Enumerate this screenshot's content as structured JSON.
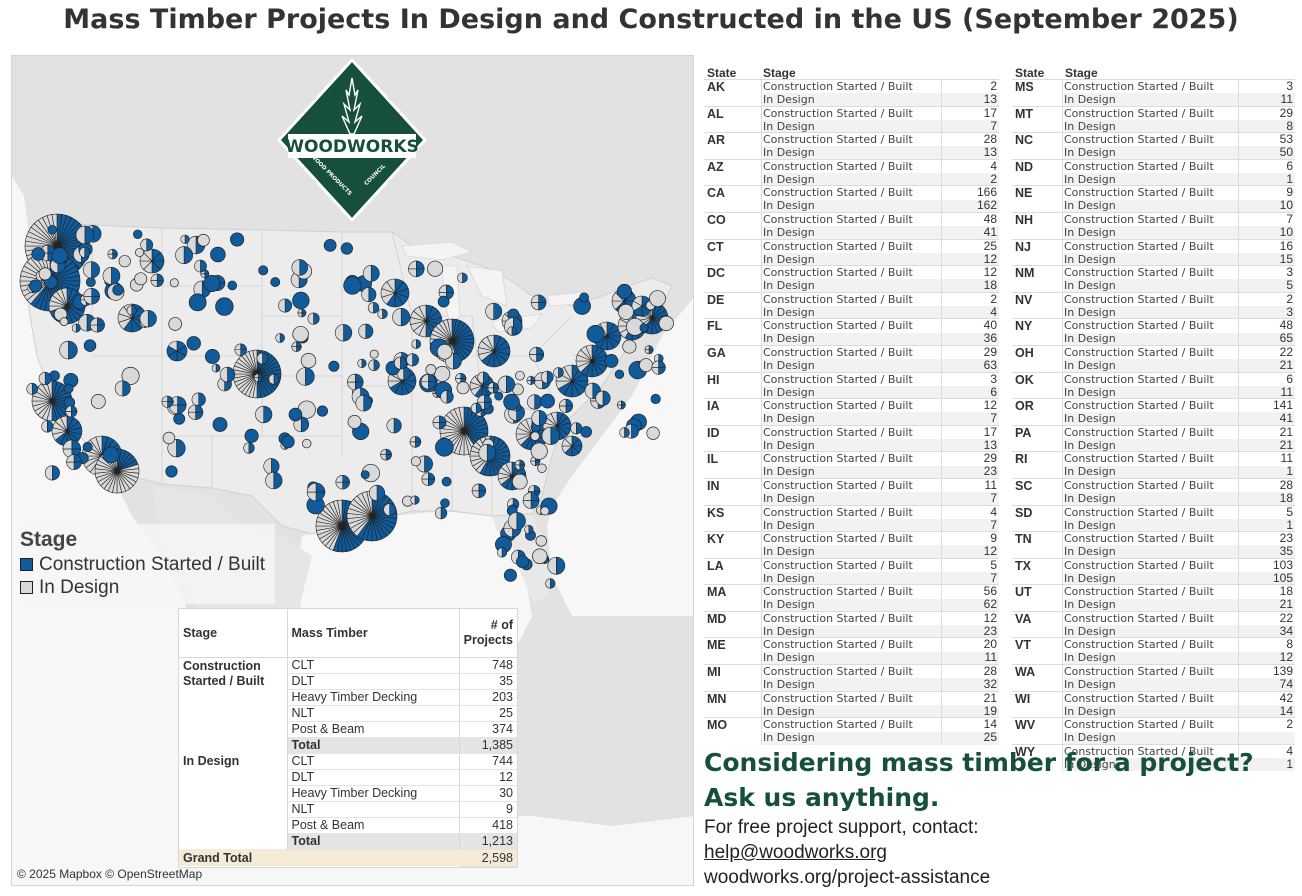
{
  "title": "Mass Timber Projects In Design and Constructed in the US (September 2025)",
  "colors": {
    "built": "#0f5b9c",
    "design": "#d9d9d9",
    "brand_green": "#17503a"
  },
  "map": {
    "attribution": "© 2025 Mapbox © OpenStreetMap",
    "logo": {
      "brand": "WOODWORKS",
      "left_text": "WOOD PRODUCTS",
      "right_text": "COUNCIL"
    },
    "legend": {
      "title": "Stage",
      "items": [
        {
          "label": "Construction Started / Built",
          "color": "#0f5b9c"
        },
        {
          "label": "In Design",
          "color": "#d9d9d9"
        }
      ]
    }
  },
  "summary": {
    "headers": {
      "stage": "Stage",
      "mass_timber": "Mass Timber",
      "projects_line1": "# of",
      "projects_line2": "Projects"
    },
    "groups": [
      {
        "stage_line1": "Construction",
        "stage_line2": "Started / Built",
        "rows": [
          {
            "type": "CLT",
            "count": "748"
          },
          {
            "type": "DLT",
            "count": "35"
          },
          {
            "type": "Heavy Timber Decking",
            "count": "203"
          },
          {
            "type": "NLT",
            "count": "25"
          },
          {
            "type": "Post & Beam",
            "count": "374"
          }
        ],
        "total_label": "Total",
        "total": "1,385"
      },
      {
        "stage_line1": "In Design",
        "stage_line2": "",
        "rows": [
          {
            "type": "CLT",
            "count": "744"
          },
          {
            "type": "DLT",
            "count": "12"
          },
          {
            "type": "Heavy Timber Decking",
            "count": "30"
          },
          {
            "type": "NLT",
            "count": "9"
          },
          {
            "type": "Post & Beam",
            "count": "418"
          }
        ],
        "total_label": "Total",
        "total": "1,213"
      }
    ],
    "grand_total_label": "Grand Total",
    "grand_total": "2,598"
  },
  "state_table": {
    "headers": {
      "state": "State",
      "stage": "Stage"
    },
    "built_label": "Construction Started / Built",
    "design_label": "In Design",
    "left": [
      {
        "state": "AK",
        "built": "2",
        "design": "13"
      },
      {
        "state": "AL",
        "built": "17",
        "design": "7"
      },
      {
        "state": "AR",
        "built": "28",
        "design": "13"
      },
      {
        "state": "AZ",
        "built": "4",
        "design": "2"
      },
      {
        "state": "CA",
        "built": "166",
        "design": "162"
      },
      {
        "state": "CO",
        "built": "48",
        "design": "41"
      },
      {
        "state": "CT",
        "built": "25",
        "design": "12"
      },
      {
        "state": "DC",
        "built": "12",
        "design": "18"
      },
      {
        "state": "DE",
        "built": "2",
        "design": "4"
      },
      {
        "state": "FL",
        "built": "40",
        "design": "36"
      },
      {
        "state": "GA",
        "built": "29",
        "design": "63"
      },
      {
        "state": "HI",
        "built": "3",
        "design": "6"
      },
      {
        "state": "IA",
        "built": "12",
        "design": "7"
      },
      {
        "state": "ID",
        "built": "17",
        "design": "13"
      },
      {
        "state": "IL",
        "built": "29",
        "design": "23"
      },
      {
        "state": "IN",
        "built": "11",
        "design": "7"
      },
      {
        "state": "KS",
        "built": "4",
        "design": "7"
      },
      {
        "state": "KY",
        "built": "9",
        "design": "12"
      },
      {
        "state": "LA",
        "built": "5",
        "design": "7"
      },
      {
        "state": "MA",
        "built": "56",
        "design": "62"
      },
      {
        "state": "MD",
        "built": "12",
        "design": "23"
      },
      {
        "state": "ME",
        "built": "20",
        "design": "11"
      },
      {
        "state": "MI",
        "built": "28",
        "design": "32"
      },
      {
        "state": "MN",
        "built": "21",
        "design": "19"
      },
      {
        "state": "MO",
        "built": "14",
        "design": "25"
      }
    ],
    "right": [
      {
        "state": "MS",
        "built": "3",
        "design": "11"
      },
      {
        "state": "MT",
        "built": "29",
        "design": "8"
      },
      {
        "state": "NC",
        "built": "53",
        "design": "50"
      },
      {
        "state": "ND",
        "built": "6",
        "design": "1"
      },
      {
        "state": "NE",
        "built": "9",
        "design": "10"
      },
      {
        "state": "NH",
        "built": "7",
        "design": "10"
      },
      {
        "state": "NJ",
        "built": "16",
        "design": "15"
      },
      {
        "state": "NM",
        "built": "3",
        "design": "5"
      },
      {
        "state": "NV",
        "built": "2",
        "design": "3"
      },
      {
        "state": "NY",
        "built": "48",
        "design": "65"
      },
      {
        "state": "OH",
        "built": "22",
        "design": "21"
      },
      {
        "state": "OK",
        "built": "6",
        "design": "11"
      },
      {
        "state": "OR",
        "built": "141",
        "design": "41"
      },
      {
        "state": "PA",
        "built": "21",
        "design": "21"
      },
      {
        "state": "RI",
        "built": "11",
        "design": "1"
      },
      {
        "state": "SC",
        "built": "28",
        "design": "18"
      },
      {
        "state": "SD",
        "built": "5",
        "design": "1"
      },
      {
        "state": "TN",
        "built": "23",
        "design": "35"
      },
      {
        "state": "TX",
        "built": "103",
        "design": "105"
      },
      {
        "state": "UT",
        "built": "18",
        "design": "21"
      },
      {
        "state": "VA",
        "built": "22",
        "design": "34"
      },
      {
        "state": "VT",
        "built": "8",
        "design": "12"
      },
      {
        "state": "WA",
        "built": "139",
        "design": "74"
      },
      {
        "state": "WI",
        "built": "42",
        "design": "14"
      },
      {
        "state": "WV",
        "built": "2",
        "design": ""
      },
      {
        "state": "WY",
        "built": "4",
        "design": "1"
      }
    ]
  },
  "cta": {
    "heading1": "Considering mass timber for a project?",
    "heading2": "Ask us anything.",
    "line1": "For free project support, contact:",
    "email": "help@woodworks.org",
    "url": "woodworks.org/project-assistance"
  }
}
